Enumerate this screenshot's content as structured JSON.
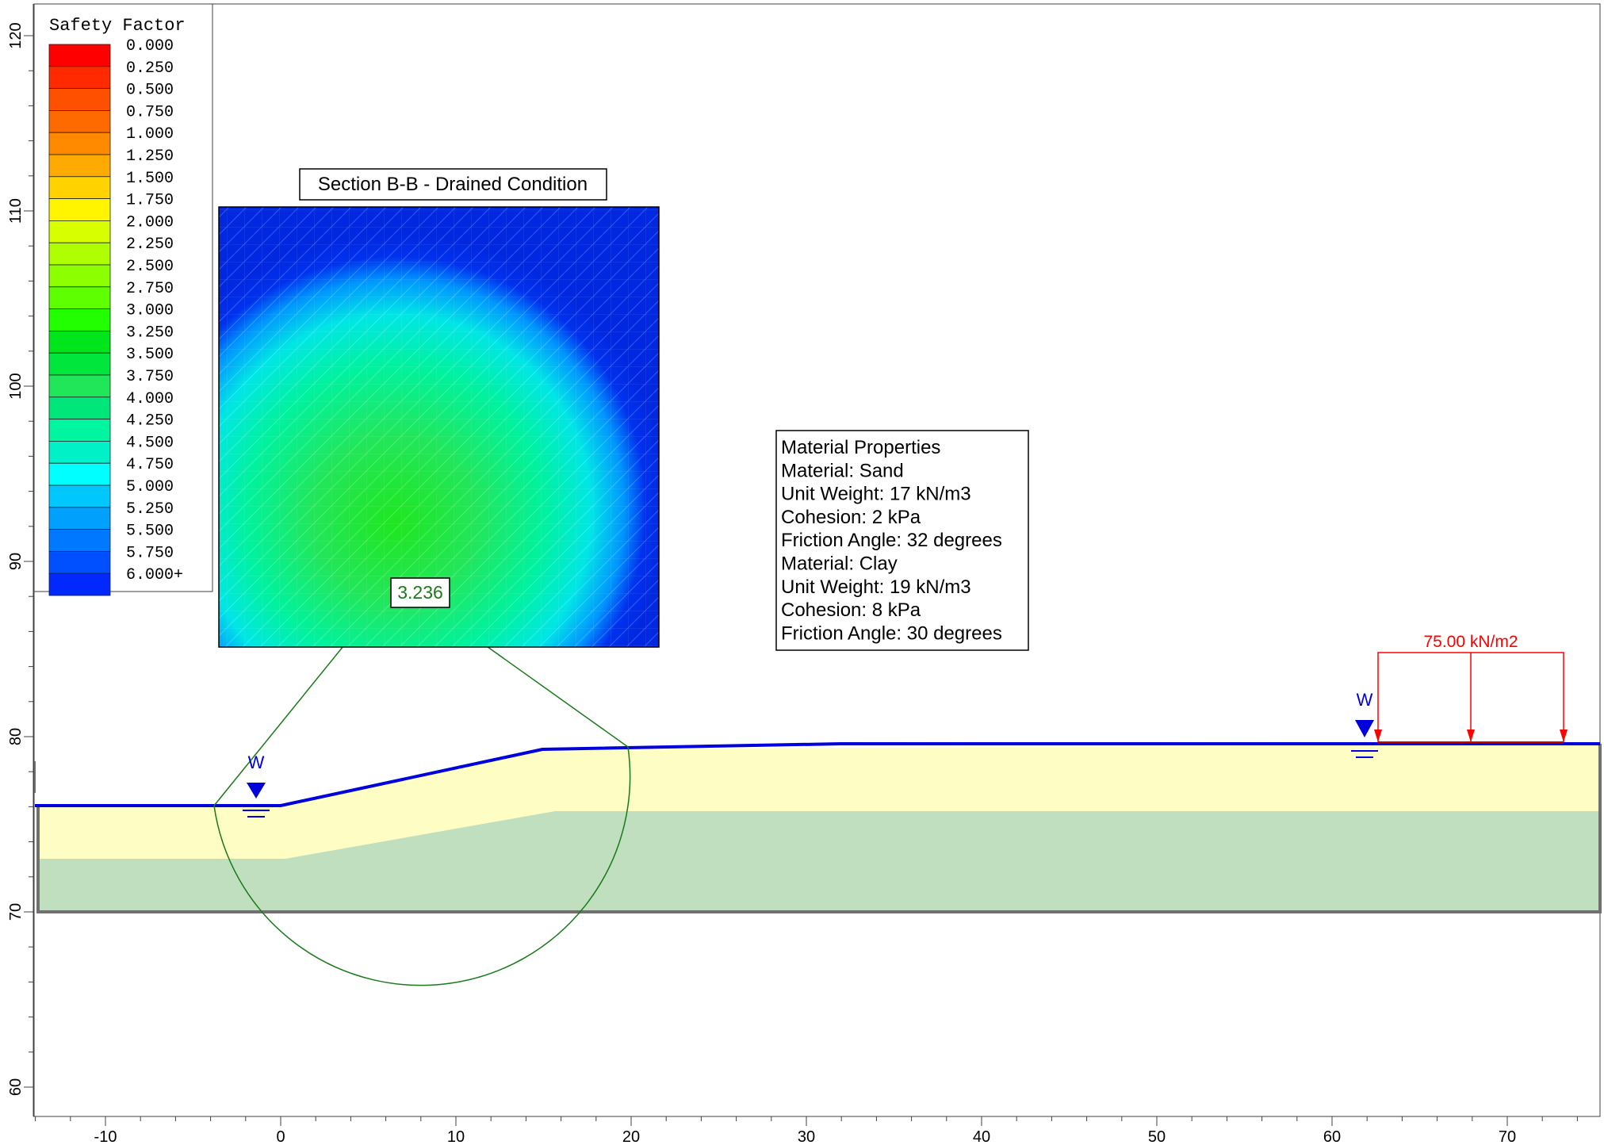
{
  "legend": {
    "title": "Safety Factor",
    "levels": [
      "0.000",
      "0.250",
      "0.500",
      "0.750",
      "1.000",
      "1.250",
      "1.500",
      "1.750",
      "2.000",
      "2.250",
      "2.500",
      "2.750",
      "3.000",
      "3.250",
      "3.500",
      "3.750",
      "4.000",
      "4.250",
      "4.500",
      "4.750",
      "5.000",
      "5.250",
      "5.500",
      "5.750",
      "6.000+"
    ],
    "colors": [
      "#ff0000",
      "#ff2a00",
      "#ff5000",
      "#ff6a00",
      "#ff8a00",
      "#ffaa00",
      "#ffd200",
      "#fff500",
      "#d7ff00",
      "#b0ff00",
      "#8cff00",
      "#5eff00",
      "#22ff00",
      "#00e61a",
      "#00e63c",
      "#22e65a",
      "#00e67a",
      "#00f5a0",
      "#00f0c8",
      "#00ffff",
      "#00c8ff",
      "#00a0ff",
      "#0078ff",
      "#0050ff",
      "#0028ff"
    ]
  },
  "inset": {
    "title": "Section B-B - Drained Condition"
  },
  "slip_surface": {
    "factor_label": "3.236",
    "color": "#1a7a1a"
  },
  "materials_box": {
    "lines": [
      "Material Properties",
      "Material: Sand",
      "Unit Weight: 17 kN/m3",
      "Cohesion: 2 kPa",
      "Friction Angle: 32 degrees",
      "Material: Clay",
      "Unit Weight: 19 kN/m3",
      "Cohesion: 8 kPa",
      "Friction Angle: 30 degrees"
    ]
  },
  "load": {
    "label": "75.00 kN/m2",
    "color": "#ff0000"
  },
  "water_table": {
    "symbol_label": "W",
    "color": "#0000dd"
  },
  "axes": {
    "x_ticks": [
      -10,
      0,
      10,
      20,
      30,
      40,
      50,
      60,
      70
    ],
    "y_ticks": [
      60,
      70,
      80,
      90,
      100,
      110,
      120
    ]
  },
  "colors": {
    "sand": "#fdfdc4",
    "clay": "#c0dfbf",
    "ground_line": "#0000dd",
    "boundary": "#707070"
  }
}
